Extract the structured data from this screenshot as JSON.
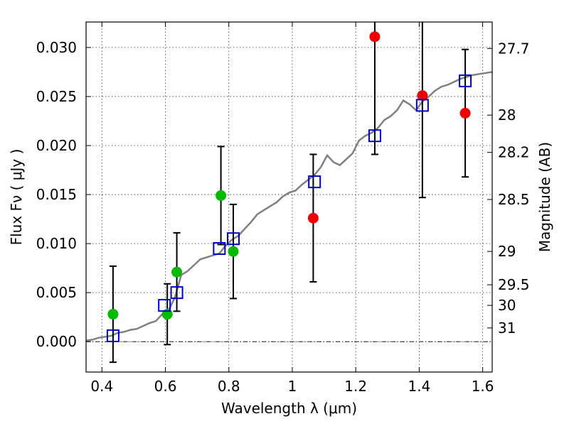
{
  "chart_data": {
    "type": "scatter",
    "xlabel": "Wavelength  λ (μm)",
    "ylabel": "Flux  Fν  ( μJy )",
    "ylabel_right": "Magnitude (AB)",
    "xlim": [
      0.35,
      1.63
    ],
    "ylim": [
      -0.0031,
      0.0326
    ],
    "grid": true,
    "x_ticks": [
      0.4,
      0.6,
      0.8,
      1.0,
      1.2,
      1.4,
      1.6
    ],
    "x_tick_labels": [
      "0.4",
      "0.6",
      "0.8",
      "1",
      "1.2",
      "1.4",
      "1.6"
    ],
    "y_ticks": [
      0.0,
      0.005,
      0.01,
      0.015,
      0.02,
      0.025,
      0.03
    ],
    "y_tick_labels": [
      "0.000",
      "0.005",
      "0.010",
      "0.015",
      "0.020",
      "0.025",
      "0.030"
    ],
    "mag_ticks": [
      {
        "label": "27.7",
        "flux": 0.0299
      },
      {
        "label": "28",
        "flux": 0.0231
      },
      {
        "label": "28.2",
        "flux": 0.0193
      },
      {
        "label": "28.5",
        "flux": 0.0145
      },
      {
        "label": "29",
        "flux": 0.0092
      },
      {
        "label": "29.5",
        "flux": 0.0058
      },
      {
        "label": "30",
        "flux": 0.0037
      },
      {
        "label": "31",
        "flux": 0.0014
      }
    ],
    "zero_line": 0.0,
    "colors": {
      "model": "#808080",
      "model_points": "#0000cc",
      "observed_optical": "#00bb00",
      "observed_ir": "#ee0000",
      "errorbar": "#000000"
    },
    "model_sed": {
      "x": [
        0.35,
        0.37,
        0.39,
        0.41,
        0.43,
        0.45,
        0.47,
        0.49,
        0.51,
        0.53,
        0.55,
        0.57,
        0.59,
        0.61,
        0.63,
        0.65,
        0.67,
        0.69,
        0.71,
        0.73,
        0.75,
        0.77,
        0.79,
        0.81,
        0.83,
        0.85,
        0.87,
        0.89,
        0.91,
        0.93,
        0.95,
        0.97,
        0.99,
        1.01,
        1.03,
        1.05,
        1.07,
        1.09,
        1.11,
        1.13,
        1.15,
        1.17,
        1.19,
        1.21,
        1.23,
        1.25,
        1.27,
        1.29,
        1.31,
        1.33,
        1.35,
        1.37,
        1.39,
        1.41,
        1.43,
        1.45,
        1.47,
        1.49,
        1.51,
        1.53,
        1.55,
        1.57,
        1.59,
        1.61,
        1.63
      ],
      "y": [
        0.0001,
        0.0002,
        0.0004,
        0.0005,
        0.0006,
        0.0009,
        0.001,
        0.0012,
        0.0013,
        0.0016,
        0.0019,
        0.0021,
        0.0028,
        0.0032,
        0.0045,
        0.0068,
        0.0072,
        0.0078,
        0.0084,
        0.0086,
        0.0088,
        0.009,
        0.0098,
        0.0104,
        0.0108,
        0.0115,
        0.0122,
        0.013,
        0.0134,
        0.0138,
        0.0142,
        0.0148,
        0.0152,
        0.0154,
        0.016,
        0.0165,
        0.017,
        0.0178,
        0.019,
        0.0183,
        0.018,
        0.0186,
        0.0192,
        0.0205,
        0.021,
        0.0213,
        0.0218,
        0.0226,
        0.023,
        0.0236,
        0.0246,
        0.0242,
        0.0236,
        0.0245,
        0.025,
        0.0256,
        0.026,
        0.0262,
        0.0265,
        0.0268,
        0.027,
        0.0272,
        0.0273,
        0.0274,
        0.0275
      ]
    },
    "model_points": {
      "x": [
        0.435,
        0.597,
        0.636,
        0.77,
        0.814,
        1.07,
        1.26,
        1.41,
        1.545
      ],
      "y": [
        0.0006,
        0.0037,
        0.005,
        0.0095,
        0.0105,
        0.0163,
        0.021,
        0.0241,
        0.0266
      ]
    },
    "observed": [
      {
        "x": 0.435,
        "y": 0.0028,
        "err_low": 0.0049,
        "err_high": 0.0049,
        "color": "green"
      },
      {
        "x": 0.606,
        "y": 0.0028,
        "err_low": 0.0031,
        "err_high": 0.0031,
        "color": "green"
      },
      {
        "x": 0.636,
        "y": 0.0071,
        "err_low": 0.004,
        "err_high": 0.004,
        "color": "green"
      },
      {
        "x": 0.775,
        "y": 0.0149,
        "err_low": 0.005,
        "err_high": 0.005,
        "color": "green"
      },
      {
        "x": 0.814,
        "y": 0.0092,
        "err_low": 0.0048,
        "err_high": 0.0048,
        "color": "green"
      },
      {
        "x": 1.066,
        "y": 0.0126,
        "err_low": 0.0065,
        "err_high": 0.0065,
        "color": "red"
      },
      {
        "x": 1.26,
        "y": 0.0311,
        "err_low": 0.012,
        "err_high": 0.012,
        "color": "red"
      },
      {
        "x": 1.41,
        "y": 0.0251,
        "err_low": 0.0104,
        "err_high": 0.0104,
        "color": "red"
      },
      {
        "x": 1.545,
        "y": 0.0233,
        "err_low": 0.0065,
        "err_high": 0.0065,
        "color": "red"
      }
    ]
  }
}
